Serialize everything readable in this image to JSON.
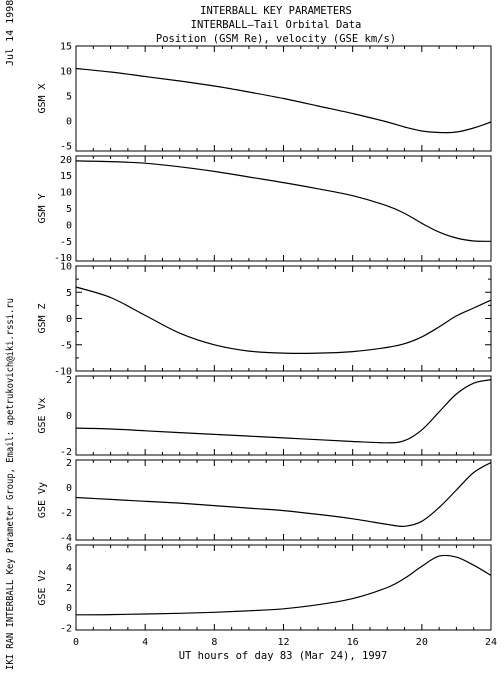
{
  "header": {
    "title_lines": [
      "INTERBALL KEY PARAMETERS",
      "INTERBALL—Tail Orbital Data",
      "Position (GSM Re), velocity (GSE km/s)"
    ]
  },
  "side_labels": {
    "date": "Jul 14 1998",
    "credit": "IKI RAN INTERBALL Key Parameter Group, Email: apetrukovich@iki.rssi.ru"
  },
  "chart_data": {
    "type": "line",
    "xlabel": "UT hours of day  83 (Mar 24), 1997",
    "xlim": [
      0,
      24
    ],
    "xticks": [
      0,
      4,
      8,
      12,
      16,
      20,
      24
    ],
    "panels": [
      {
        "ylabel": "GSM X",
        "ylim": [
          -6,
          15
        ],
        "yticks": [
          -5,
          0,
          5,
          10,
          15
        ],
        "x": [
          0,
          2,
          4,
          6,
          8,
          10,
          12,
          14,
          16,
          18,
          19,
          20,
          21,
          22,
          23,
          24
        ],
        "values": [
          10.5,
          9.8,
          8.9,
          8.0,
          7.0,
          5.8,
          4.5,
          3.0,
          1.5,
          -0.2,
          -1.2,
          -2.0,
          -2.3,
          -2.2,
          -1.4,
          -0.2
        ]
      },
      {
        "ylabel": "GSM Y",
        "ylim": [
          -11,
          21
        ],
        "yticks": [
          -10,
          -5,
          0,
          5,
          10,
          15,
          20
        ],
        "x": [
          0,
          2,
          4,
          6,
          8,
          10,
          12,
          14,
          16,
          18,
          19,
          20,
          21,
          22,
          23,
          24
        ],
        "values": [
          19.5,
          19.3,
          18.8,
          17.7,
          16.3,
          14.6,
          12.9,
          11.0,
          8.9,
          5.8,
          3.5,
          0.5,
          -2.2,
          -4.0,
          -4.9,
          -5.0
        ]
      },
      {
        "ylabel": "GSM Z",
        "ylim": [
          -10,
          10
        ],
        "yticks": [
          -10,
          -5,
          0,
          5,
          10
        ],
        "x": [
          0,
          2,
          4,
          6,
          8,
          10,
          12,
          14,
          16,
          18,
          19,
          20,
          21,
          22,
          23,
          24
        ],
        "values": [
          6.0,
          4.0,
          0.6,
          -2.8,
          -5.0,
          -6.2,
          -6.6,
          -6.6,
          -6.3,
          -5.5,
          -4.8,
          -3.5,
          -1.6,
          0.5,
          2.0,
          3.5
        ]
      },
      {
        "ylabel": "GSE Vx",
        "ylim": [
          -2.2,
          2.2
        ],
        "yticks": [
          -2,
          0,
          2
        ],
        "x": [
          0,
          2,
          4,
          6,
          8,
          10,
          12,
          14,
          16,
          18,
          19,
          20,
          21,
          22,
          23,
          24
        ],
        "values": [
          -0.7,
          -0.75,
          -0.85,
          -0.95,
          -1.05,
          -1.15,
          -1.25,
          -1.35,
          -1.45,
          -1.52,
          -1.4,
          -0.8,
          0.2,
          1.2,
          1.8,
          2.0
        ]
      },
      {
        "ylabel": "GSE Vy",
        "ylim": [
          -4.2,
          2.2
        ],
        "yticks": [
          -4,
          -2,
          0,
          2
        ],
        "x": [
          0,
          2,
          4,
          6,
          8,
          10,
          12,
          14,
          16,
          18,
          19,
          20,
          21,
          22,
          23,
          24
        ],
        "values": [
          -0.8,
          -0.95,
          -1.1,
          -1.25,
          -1.45,
          -1.65,
          -1.85,
          -2.15,
          -2.5,
          -2.95,
          -3.1,
          -2.7,
          -1.6,
          -0.2,
          1.2,
          2.0
        ]
      },
      {
        "ylabel": "GSE Vz",
        "ylim": [
          -2.2,
          6.2
        ],
        "yticks": [
          -2,
          0,
          2,
          4,
          6
        ],
        "x": [
          0,
          2,
          4,
          6,
          8,
          10,
          12,
          14,
          16,
          18,
          19,
          20,
          21,
          22,
          23,
          24
        ],
        "values": [
          -0.7,
          -0.68,
          -0.62,
          -0.55,
          -0.45,
          -0.3,
          -0.1,
          0.3,
          0.9,
          2.0,
          2.9,
          4.1,
          5.1,
          5.0,
          4.2,
          3.2
        ]
      }
    ]
  }
}
